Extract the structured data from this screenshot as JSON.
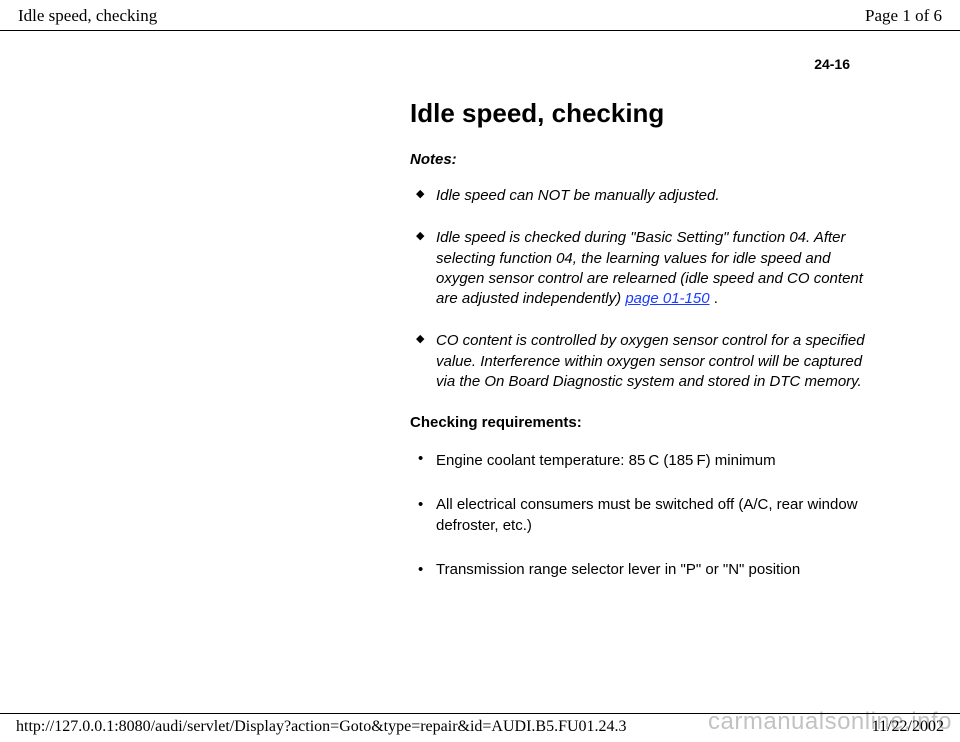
{
  "header": {
    "title_left": "Idle speed, checking",
    "title_right": "Page 1 of 6"
  },
  "page_number": "24-16",
  "main_title": "Idle speed, checking",
  "notes_label": "Notes:",
  "notes": [
    {
      "text": "Idle speed can NOT be manually adjusted."
    },
    {
      "text_before": "Idle speed is checked during \"Basic Setting\" function 04. After selecting function 04, the learning values for idle speed and oxygen sensor control are relearned (idle speed and CO content are adjusted independently)  ",
      "link_text": "page 01-150",
      "text_after": " ."
    },
    {
      "text": "CO content is controlled by oxygen sensor control for a specified value. Interference within oxygen sensor control will be captured via the On Board Diagnostic system and stored in DTC memory."
    }
  ],
  "requirements_label": "Checking requirements:",
  "requirements": [
    {
      "pre": "Engine coolant temperature: 85",
      "deg1": " ",
      "mid": " C (185",
      "deg2": " ",
      "post": " F) minimum"
    },
    {
      "text": "All electrical consumers must be switched off (A/C, rear window defroster, etc.)"
    },
    {
      "text": "Transmission range selector lever in \"P\" or \"N\" position"
    }
  ],
  "footer": {
    "url": "http://127.0.0.1:8080/audi/servlet/Display?action=Goto&type=repair&id=AUDI.B5.FU01.24.3",
    "date": "11/22/2002"
  },
  "watermark": "carmanualsonline.info"
}
